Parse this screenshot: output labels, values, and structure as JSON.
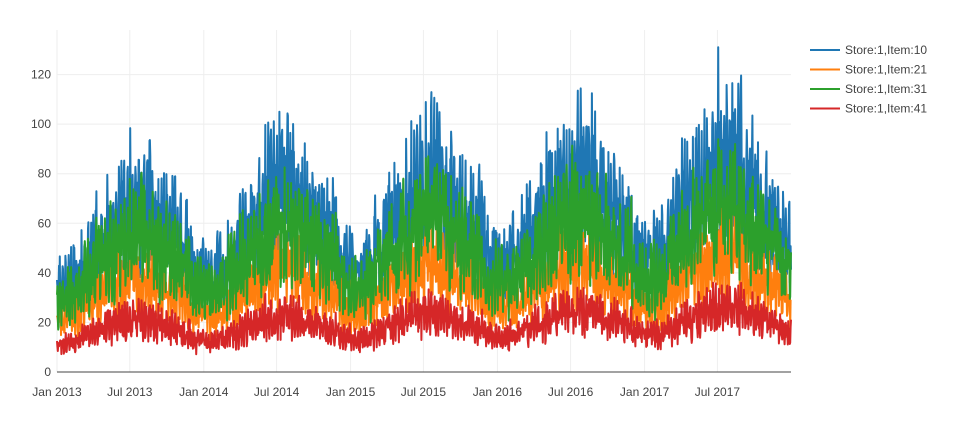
{
  "chart_data": {
    "type": "line",
    "title": "",
    "xlabel": "",
    "ylabel": "",
    "x_range": [
      "2013-01-01",
      "2017-12-31"
    ],
    "x_ticks": [
      "2013-01-01",
      "2013-07-01",
      "2014-01-01",
      "2014-07-01",
      "2015-01-01",
      "2015-07-01",
      "2016-01-01",
      "2016-07-01",
      "2017-01-01",
      "2017-07-01"
    ],
    "x_tick_labels": [
      "Jan 2013",
      "Jul 2013",
      "Jan 2014",
      "Jul 2014",
      "Jan 2015",
      "Jul 2015",
      "Jan 2016",
      "Jul 2016",
      "Jan 2017",
      "Jul 2017"
    ],
    "ylim": [
      0,
      138
    ],
    "y_ticks": [
      0,
      20,
      40,
      60,
      80,
      100,
      120
    ],
    "y_tick_labels": [
      "0",
      "20",
      "40",
      "60",
      "80",
      "100",
      "120"
    ],
    "grid": true,
    "legend_position": "top-right",
    "series": [
      {
        "name": "Store:1,Item:10",
        "color": "#1f77b4",
        "monthly_x": [
          "2013-01",
          "2013-02",
          "2013-03",
          "2013-04",
          "2013-05",
          "2013-06",
          "2013-07",
          "2013-08",
          "2013-09",
          "2013-10",
          "2013-11",
          "2013-12",
          "2014-01",
          "2014-02",
          "2014-03",
          "2014-04",
          "2014-05",
          "2014-06",
          "2014-07",
          "2014-08",
          "2014-09",
          "2014-10",
          "2014-11",
          "2014-12",
          "2015-01",
          "2015-02",
          "2015-03",
          "2015-04",
          "2015-05",
          "2015-06",
          "2015-07",
          "2015-08",
          "2015-09",
          "2015-10",
          "2015-11",
          "2015-12",
          "2016-01",
          "2016-02",
          "2016-03",
          "2016-04",
          "2016-05",
          "2016-06",
          "2016-07",
          "2016-08",
          "2016-09",
          "2016-10",
          "2016-11",
          "2016-12",
          "2017-01",
          "2017-02",
          "2017-03",
          "2017-04",
          "2017-05",
          "2017-06",
          "2017-07",
          "2017-08",
          "2017-09",
          "2017-10",
          "2017-11",
          "2017-12"
        ],
        "monthly_mean": [
          36,
          38,
          45,
          52,
          58,
          64,
          68,
          66,
          58,
          56,
          52,
          40,
          38,
          40,
          48,
          56,
          62,
          70,
          74,
          72,
          64,
          60,
          56,
          44,
          42,
          44,
          52,
          60,
          66,
          74,
          78,
          76,
          68,
          64,
          58,
          46,
          44,
          46,
          54,
          62,
          70,
          76,
          80,
          78,
          70,
          66,
          60,
          48,
          46,
          48,
          58,
          66,
          74,
          80,
          86,
          84,
          74,
          68,
          62,
          52
        ],
        "peak": 131
      },
      {
        "name": "Store:1,Item:21",
        "color": "#ff7f0e",
        "monthly_x": [
          "2013-01",
          "2013-02",
          "2013-03",
          "2013-04",
          "2013-05",
          "2013-06",
          "2013-07",
          "2013-08",
          "2013-09",
          "2013-10",
          "2013-11",
          "2013-12",
          "2014-01",
          "2014-02",
          "2014-03",
          "2014-04",
          "2014-05",
          "2014-06",
          "2014-07",
          "2014-08",
          "2014-09",
          "2014-10",
          "2014-11",
          "2014-12",
          "2015-01",
          "2015-02",
          "2015-03",
          "2015-04",
          "2015-05",
          "2015-06",
          "2015-07",
          "2015-08",
          "2015-09",
          "2015-10",
          "2015-11",
          "2015-12",
          "2016-01",
          "2016-02",
          "2016-03",
          "2016-04",
          "2016-05",
          "2016-06",
          "2016-07",
          "2016-08",
          "2016-09",
          "2016-10",
          "2016-11",
          "2016-12",
          "2017-01",
          "2017-02",
          "2017-03",
          "2017-04",
          "2017-05",
          "2017-06",
          "2017-07",
          "2017-08",
          "2017-09",
          "2017-10",
          "2017-11",
          "2017-12"
        ],
        "monthly_mean": [
          22,
          24,
          28,
          31,
          34,
          37,
          39,
          38,
          34,
          32,
          30,
          24,
          23,
          24,
          28,
          32,
          35,
          39,
          41,
          40,
          36,
          34,
          32,
          26,
          25,
          26,
          30,
          34,
          37,
          41,
          43,
          42,
          38,
          36,
          33,
          27,
          26,
          27,
          31,
          35,
          39,
          42,
          44,
          43,
          39,
          37,
          34,
          28,
          27,
          28,
          33,
          37,
          41,
          45,
          47,
          46,
          41,
          38,
          35,
          29
        ]
      },
      {
        "name": "Store:1,Item:31",
        "color": "#2ca02c",
        "monthly_x": [
          "2013-01",
          "2013-02",
          "2013-03",
          "2013-04",
          "2013-05",
          "2013-06",
          "2013-07",
          "2013-08",
          "2013-09",
          "2013-10",
          "2013-11",
          "2013-12",
          "2014-01",
          "2014-02",
          "2014-03",
          "2014-04",
          "2014-05",
          "2014-06",
          "2014-07",
          "2014-08",
          "2014-09",
          "2014-10",
          "2014-11",
          "2014-12",
          "2015-01",
          "2015-02",
          "2015-03",
          "2015-04",
          "2015-05",
          "2015-06",
          "2015-07",
          "2015-08",
          "2015-09",
          "2015-10",
          "2015-11",
          "2015-12",
          "2016-01",
          "2016-02",
          "2016-03",
          "2016-04",
          "2016-05",
          "2016-06",
          "2016-07",
          "2016-08",
          "2016-09",
          "2016-10",
          "2016-11",
          "2016-12",
          "2017-01",
          "2017-02",
          "2017-03",
          "2017-04",
          "2017-05",
          "2017-06",
          "2017-07",
          "2017-08",
          "2017-09",
          "2017-10",
          "2017-11",
          "2017-12"
        ],
        "monthly_mean": [
          30,
          32,
          38,
          44,
          48,
          53,
          56,
          55,
          49,
          46,
          43,
          34,
          32,
          33,
          40,
          46,
          51,
          56,
          59,
          58,
          52,
          49,
          46,
          36,
          34,
          36,
          42,
          48,
          54,
          59,
          62,
          61,
          55,
          52,
          48,
          38,
          36,
          38,
          44,
          51,
          56,
          61,
          64,
          63,
          57,
          54,
          50,
          40,
          38,
          40,
          47,
          53,
          59,
          64,
          67,
          66,
          60,
          56,
          52,
          42
        ]
      },
      {
        "name": "Store:1,Item:41",
        "color": "#d62728",
        "monthly_x": [
          "2013-01",
          "2013-02",
          "2013-03",
          "2013-04",
          "2013-05",
          "2013-06",
          "2013-07",
          "2013-08",
          "2013-09",
          "2013-10",
          "2013-11",
          "2013-12",
          "2014-01",
          "2014-02",
          "2014-03",
          "2014-04",
          "2014-05",
          "2014-06",
          "2014-07",
          "2014-08",
          "2014-09",
          "2014-10",
          "2014-11",
          "2014-12",
          "2015-01",
          "2015-02",
          "2015-03",
          "2015-04",
          "2015-05",
          "2015-06",
          "2015-07",
          "2015-08",
          "2015-09",
          "2015-10",
          "2015-11",
          "2015-12",
          "2016-01",
          "2016-02",
          "2016-03",
          "2016-04",
          "2016-05",
          "2016-06",
          "2016-07",
          "2016-08",
          "2016-09",
          "2016-10",
          "2016-11",
          "2016-12",
          "2017-01",
          "2017-02",
          "2017-03",
          "2017-04",
          "2017-05",
          "2017-06",
          "2017-07",
          "2017-08",
          "2017-09",
          "2017-10",
          "2017-11",
          "2017-12"
        ],
        "monthly_mean": [
          12,
          13,
          15,
          17,
          19,
          20,
          21,
          21,
          19,
          18,
          16,
          13,
          12,
          13,
          15,
          18,
          20,
          22,
          23,
          22,
          20,
          19,
          17,
          14,
          13,
          14,
          16,
          19,
          21,
          23,
          24,
          23,
          21,
          20,
          18,
          15,
          14,
          15,
          17,
          20,
          22,
          24,
          25,
          24,
          22,
          21,
          19,
          16,
          15,
          16,
          18,
          21,
          23,
          25,
          26,
          25,
          23,
          22,
          20,
          17
        ]
      }
    ]
  }
}
